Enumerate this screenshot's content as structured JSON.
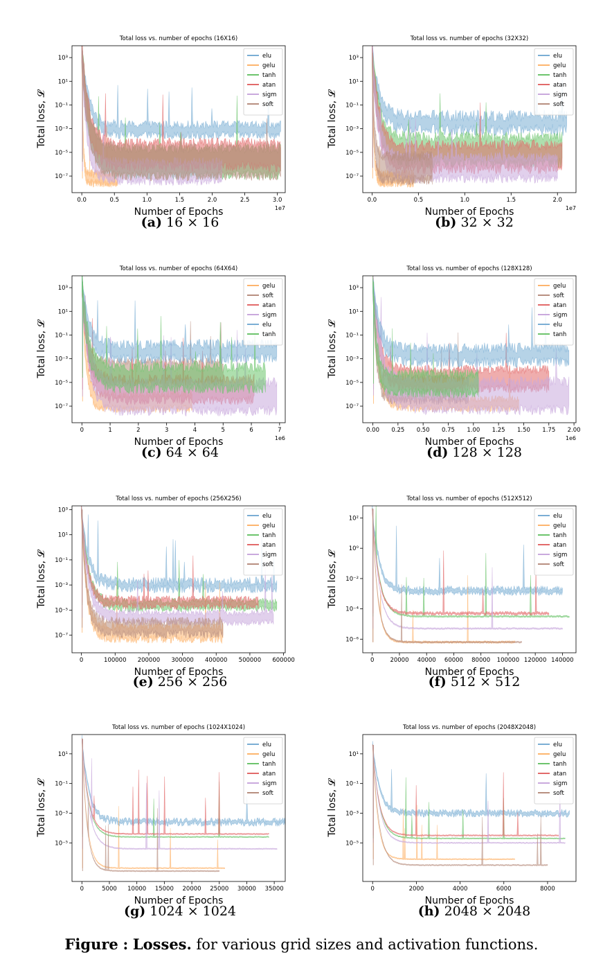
{
  "figure": {
    "label": "Figure",
    "sep": ":",
    "title": "Losses.",
    "text": " for various grid sizes and activation functions."
  },
  "colors": {
    "elu": "#7aaed4",
    "gelu": "#fdb56e",
    "tanh": "#6cc46c",
    "atan": "#e26a6a",
    "sigm": "#c9a9dd",
    "soft": "#b88f80"
  },
  "chart_data": [
    {
      "type": "line",
      "panel": "a",
      "caption_label": "(a)",
      "caption_text": "16 × 16",
      "title": "Total loss vs. number of epochs (16X16)",
      "xlabel": "Number of Epochs",
      "ylabel": "Total loss, 𝓛",
      "xlim": [
        -0.15,
        3.12
      ],
      "xticks": [
        0,
        0.5,
        1.0,
        1.5,
        2.0,
        2.5,
        3.0
      ],
      "xtick_labels": [
        "0.0",
        "0.5",
        "1.0",
        "1.5",
        "2.0",
        "2.5",
        "3.0"
      ],
      "x_multiplier": "1e7",
      "ylim_log10": [
        -8.4,
        4
      ],
      "yticks_log10": [
        3,
        1,
        -1,
        -3,
        -5,
        -7
      ],
      "legend": "top-right",
      "series": [
        {
          "name": "elu",
          "x_end": 3.05,
          "level": -3.1,
          "start": 3.6,
          "noise": 0.7,
          "spread": 0.45
        },
        {
          "name": "gelu",
          "x_end": 0.55,
          "level": -7.2,
          "start": 3.6,
          "noise": 0.7,
          "spread": 0.4
        },
        {
          "name": "tanh",
          "x_end": 3.05,
          "level": -5.8,
          "start": 3.6,
          "noise": 0.8,
          "spread": 1.1
        },
        {
          "name": "atan",
          "x_end": 3.05,
          "level": -5.2,
          "start": 3.6,
          "noise": 0.9,
          "spread": 1.0
        },
        {
          "name": "sigm",
          "x_end": 2.15,
          "level": -6.6,
          "start": 3.6,
          "noise": 0.8,
          "spread": 0.8
        },
        {
          "name": "soft",
          "x_end": 3.05,
          "level": -5.8,
          "start": 3.6,
          "noise": 0.8,
          "spread": 1.2
        }
      ]
    },
    {
      "type": "line",
      "panel": "b",
      "caption_label": "(b)",
      "caption_text": "32 × 32",
      "title": "Total loss vs. number of epochs (32X32)",
      "xlabel": "Number of Epochs",
      "ylabel": "Total loss, 𝓛",
      "xlim": [
        -0.1,
        2.2
      ],
      "xticks": [
        0,
        0.5,
        1.0,
        1.5,
        2.0
      ],
      "xtick_labels": [
        "0.0",
        "0.5",
        "1.0",
        "1.5",
        "2.0"
      ],
      "x_multiplier": "1e7",
      "ylim_log10": [
        -8.4,
        4
      ],
      "yticks_log10": [
        3,
        1,
        -1,
        -3,
        -5,
        -7
      ],
      "legend": "top-right",
      "series": [
        {
          "name": "elu",
          "x_end": 2.1,
          "level": -2.5,
          "start": 3.4,
          "noise": 1.0,
          "spread": 0.6
        },
        {
          "name": "gelu",
          "x_end": 0.45,
          "level": -7.2,
          "start": 3.4,
          "noise": 0.7,
          "spread": 0.4
        },
        {
          "name": "tanh",
          "x_end": 2.05,
          "level": -4.8,
          "start": 3.4,
          "noise": 0.9,
          "spread": 1.1
        },
        {
          "name": "atan",
          "x_end": 2.05,
          "level": -5.4,
          "start": 3.4,
          "noise": 0.9,
          "spread": 1.0
        },
        {
          "name": "sigm",
          "x_end": 2.0,
          "level": -6.3,
          "start": 3.4,
          "noise": 0.8,
          "spread": 0.9
        },
        {
          "name": "soft",
          "x_end": 0.65,
          "level": -6.3,
          "start": 3.4,
          "noise": 0.9,
          "spread": 1.0
        }
      ]
    },
    {
      "type": "line",
      "panel": "c",
      "caption_label": "(c)",
      "caption_text": "64 × 64",
      "title": "Total loss vs. number of epochs (64X64)",
      "xlabel": "Number of Epochs",
      "ylabel": "Total loss, 𝓛",
      "xlim": [
        -0.35,
        7.2
      ],
      "xticks": [
        0,
        1,
        2,
        3,
        4,
        5,
        6,
        7
      ],
      "xtick_labels": [
        "0",
        "1",
        "2",
        "3",
        "4",
        "5",
        "6",
        "7"
      ],
      "x_multiplier": "1e6",
      "ylim_log10": [
        -8.4,
        4
      ],
      "yticks_log10": [
        3,
        1,
        -1,
        -3,
        -5,
        -7
      ],
      "legend": "top-right",
      "series": [
        {
          "name": "gelu",
          "x_end": 3.9,
          "level": -6.6,
          "start": 3.5,
          "noise": 0.7,
          "spread": 0.6
        },
        {
          "name": "soft",
          "x_end": 5.0,
          "level": -4.2,
          "start": 3.5,
          "noise": 0.8,
          "spread": 0.9
        },
        {
          "name": "atan",
          "x_end": 6.1,
          "level": -5.6,
          "start": 3.5,
          "noise": 0.8,
          "spread": 0.9
        },
        {
          "name": "sigm",
          "x_end": 6.9,
          "level": -6.2,
          "start": 3.5,
          "noise": 0.9,
          "spread": 1.2
        },
        {
          "name": "elu",
          "x_end": 6.9,
          "level": -2.4,
          "start": 3.5,
          "noise": 0.9,
          "spread": 0.6
        },
        {
          "name": "tanh",
          "x_end": 6.5,
          "level": -4.6,
          "start": 3.5,
          "noise": 0.9,
          "spread": 0.9
        }
      ]
    },
    {
      "type": "line",
      "panel": "d",
      "caption_label": "(d)",
      "caption_text": "128 × 128",
      "title": "Total loss vs. number of epochs (128X128)",
      "xlabel": "Number of Epochs",
      "ylabel": "Total loss, 𝓛",
      "xlim": [
        -0.1,
        2.02
      ],
      "xticks": [
        0,
        0.25,
        0.5,
        0.75,
        1.0,
        1.25,
        1.5,
        1.75,
        2.0
      ],
      "xtick_labels": [
        "0.00",
        "0.25",
        "0.50",
        "0.75",
        "1.00",
        "1.25",
        "1.50",
        "1.75",
        "2.00"
      ],
      "x_multiplier": "1e6",
      "ylim_log10": [
        -8.4,
        4
      ],
      "yticks_log10": [
        3,
        1,
        -1,
        -3,
        -5,
        -7
      ],
      "legend": "top-right",
      "series": [
        {
          "name": "gelu",
          "x_end": 1.45,
          "level": -6.8,
          "start": 3.5,
          "noise": 0.6,
          "spread": 0.4
        },
        {
          "name": "soft",
          "x_end": 0.95,
          "level": -5.6,
          "start": 3.5,
          "noise": 0.8,
          "spread": 0.9
        },
        {
          "name": "atan",
          "x_end": 1.75,
          "level": -4.7,
          "start": 3.5,
          "noise": 0.8,
          "spread": 0.8
        },
        {
          "name": "sigm",
          "x_end": 1.95,
          "level": -6.1,
          "start": 3.5,
          "noise": 0.9,
          "spread": 1.2
        },
        {
          "name": "elu",
          "x_end": 1.95,
          "level": -2.7,
          "start": 3.5,
          "noise": 0.9,
          "spread": 0.6
        },
        {
          "name": "tanh",
          "x_end": 1.05,
          "level": -5.1,
          "start": 3.5,
          "noise": 0.8,
          "spread": 0.8
        }
      ]
    },
    {
      "type": "line",
      "panel": "e",
      "caption_label": "(e)",
      "caption_text": "256 × 256",
      "title": "Total loss vs. number of epochs (256X256)",
      "xlabel": "Number of Epochs",
      "ylabel": "Total loss, 𝓛",
      "xlim": [
        -28000,
        605000
      ],
      "xticks": [
        0,
        100000,
        200000,
        300000,
        400000,
        500000,
        600000
      ],
      "xtick_labels": [
        "0",
        "100000",
        "200000",
        "300000",
        "400000",
        "500000",
        "600000"
      ],
      "x_multiplier": "",
      "ylim_log10": [
        -8.4,
        3.3
      ],
      "yticks_log10": [
        3,
        1,
        -1,
        -3,
        -5,
        -7
      ],
      "legend": "top-right",
      "series": [
        {
          "name": "elu",
          "x_end": 580000,
          "level": -3.0,
          "start": 3.0,
          "noise": 0.7,
          "spread": 0.3
        },
        {
          "name": "gelu",
          "x_end": 420000,
          "level": -6.8,
          "start": 3.0,
          "noise": 0.7,
          "spread": 0.5
        },
        {
          "name": "tanh",
          "x_end": 580000,
          "level": -4.6,
          "start": 3.0,
          "noise": 0.5,
          "spread": 0.3
        },
        {
          "name": "atan",
          "x_end": 525000,
          "level": -4.4,
          "start": 3.0,
          "noise": 0.5,
          "spread": 0.3
        },
        {
          "name": "sigm",
          "x_end": 570000,
          "level": -5.6,
          "start": 3.0,
          "noise": 0.5,
          "spread": 0.4
        },
        {
          "name": "soft",
          "x_end": 420000,
          "level": -6.4,
          "start": 3.0,
          "noise": 0.7,
          "spread": 0.5
        }
      ]
    },
    {
      "type": "line",
      "panel": "f",
      "caption_label": "(f)",
      "caption_text": "512 × 512",
      "title": "Total loss vs. number of epochs (512X512)",
      "xlabel": "Number of Epochs",
      "ylabel": "Total loss, 𝓛",
      "xlim": [
        -7000,
        150000
      ],
      "xticks": [
        0,
        20000,
        40000,
        60000,
        80000,
        100000,
        120000,
        140000
      ],
      "xtick_labels": [
        "0",
        "20000",
        "40000",
        "60000",
        "80000",
        "100000",
        "120000",
        "140000"
      ],
      "x_multiplier": "",
      "ylim_log10": [
        -6.9,
        2.8
      ],
      "yticks_log10": [
        2,
        0,
        -2,
        -4,
        -6
      ],
      "legend": "top-right",
      "series": [
        {
          "name": "elu",
          "x_end": 140000,
          "level": -2.8,
          "start": 2.6,
          "noise": 0.35,
          "spread": 0.15
        },
        {
          "name": "gelu",
          "x_end": 105000,
          "level": -6.2,
          "start": 2.6,
          "noise": 0.08,
          "spread": 0.05
        },
        {
          "name": "tanh",
          "x_end": 145000,
          "level": -4.5,
          "start": 2.6,
          "noise": 0.06,
          "spread": 0.04
        },
        {
          "name": "atan",
          "x_end": 130000,
          "level": -4.3,
          "start": 2.6,
          "noise": 0.15,
          "spread": 0.06
        },
        {
          "name": "sigm",
          "x_end": 140000,
          "level": -5.3,
          "start": 2.6,
          "noise": 0.06,
          "spread": 0.04
        },
        {
          "name": "soft",
          "x_end": 110000,
          "level": -6.2,
          "start": 2.6,
          "noise": 0.06,
          "spread": 0.04
        }
      ]
    },
    {
      "type": "line",
      "panel": "g",
      "caption_label": "(g)",
      "caption_text": "1024 × 1024",
      "title": "Total loss vs. number of epochs (1024X1024)",
      "xlabel": "Number of Epochs",
      "ylabel": "Total loss, 𝓛",
      "xlim": [
        -1800,
        37000
      ],
      "xticks": [
        0,
        5000,
        10000,
        15000,
        20000,
        25000,
        30000,
        35000
      ],
      "xtick_labels": [
        "0",
        "5000",
        "10000",
        "15000",
        "20000",
        "25000",
        "30000",
        "35000"
      ],
      "x_multiplier": "",
      "ylim_log10": [
        -7.6,
        2.3
      ],
      "yticks_log10": [
        1,
        -1,
        -3,
        -5
      ],
      "legend": "top-right",
      "series": [
        {
          "name": "elu",
          "x_end": 37000,
          "level": -3.6,
          "start": 2.0,
          "noise": 0.35,
          "spread": 0.12
        },
        {
          "name": "gelu",
          "x_end": 26000,
          "level": -6.7,
          "start": 2.0,
          "noise": 0.04,
          "spread": 0.03
        },
        {
          "name": "tanh",
          "x_end": 34000,
          "level": -4.6,
          "start": 2.0,
          "noise": 0.04,
          "spread": 0.03
        },
        {
          "name": "atan",
          "x_end": 34000,
          "level": -4.4,
          "start": 2.0,
          "noise": 0.04,
          "spread": 0.03
        },
        {
          "name": "sigm",
          "x_end": 35500,
          "level": -5.4,
          "start": 2.0,
          "noise": 0.04,
          "spread": 0.03
        },
        {
          "name": "soft",
          "x_end": 25000,
          "level": -6.9,
          "start": 2.0,
          "noise": 0.04,
          "spread": 0.03
        }
      ]
    },
    {
      "type": "line",
      "panel": "h",
      "caption_label": "(h)",
      "caption_text": "2048 × 2048",
      "title": "Total loss vs. number of epochs (2048X2048)",
      "xlabel": "Number of Epochs",
      "ylabel": "Total loss, 𝓛",
      "xlim": [
        -450,
        9300
      ],
      "xticks": [
        0,
        2000,
        4000,
        6000,
        8000
      ],
      "xtick_labels": [
        "0",
        "2000",
        "4000",
        "6000",
        "8000"
      ],
      "x_multiplier": "",
      "ylim_log10": [
        -7.6,
        2.3
      ],
      "yticks_log10": [
        1,
        -1,
        -3,
        -5
      ],
      "legend": "top-right",
      "series": [
        {
          "name": "elu",
          "x_end": 9000,
          "level": -3.0,
          "start": 1.6,
          "noise": 0.3,
          "spread": 0.12
        },
        {
          "name": "gelu",
          "x_end": 6500,
          "level": -6.1,
          "start": 1.6,
          "noise": 0.04,
          "spread": 0.03
        },
        {
          "name": "tanh",
          "x_end": 8800,
          "level": -4.7,
          "start": 1.6,
          "noise": 0.04,
          "spread": 0.03
        },
        {
          "name": "atan",
          "x_end": 8500,
          "level": -4.5,
          "start": 1.6,
          "noise": 0.04,
          "spread": 0.03
        },
        {
          "name": "sigm",
          "x_end": 8800,
          "level": -5.0,
          "start": 1.6,
          "noise": 0.04,
          "spread": 0.03
        },
        {
          "name": "soft",
          "x_end": 8000,
          "level": -6.5,
          "start": 1.6,
          "noise": 0.04,
          "spread": 0.03
        }
      ]
    }
  ]
}
